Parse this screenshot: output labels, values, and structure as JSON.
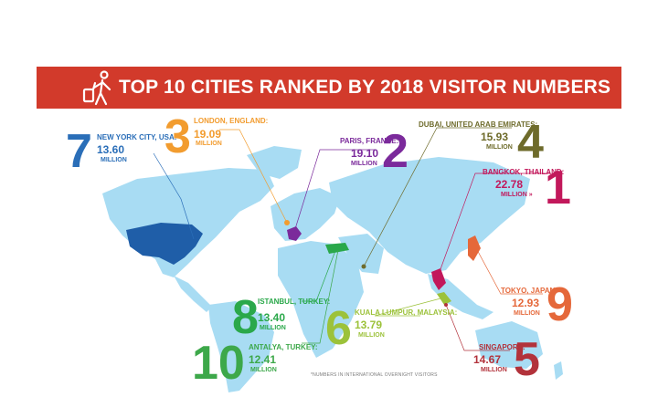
{
  "title": "TOP 10 CITIES RANKED BY 2018 VISITOR NUMBERS",
  "footnote": "*NUMBERS IN INTERNATIONAL OVERNIGHT VISITORS",
  "icon": "traveler-with-suitcase-icon",
  "colors": {
    "banner": "#d23a2b",
    "map": "#a8dcf3",
    "usa": "#1f5ea8"
  },
  "chart_data": {
    "type": "table",
    "title": "TOP 10 CITIES RANKED BY 2018 VISITOR NUMBERS",
    "unit": "MILLION",
    "entries": [
      {
        "rank": "1",
        "city": "BANGKOK, THAILAND:",
        "value": "22.78",
        "unit": "MILLION »",
        "color": "#c2185b"
      },
      {
        "rank": "2",
        "city": "PARIS, FRANCE:",
        "value": "19.10",
        "unit": "MILLION",
        "color": "#7b2a9b"
      },
      {
        "rank": "3",
        "city": "LONDON, ENGLAND:",
        "value": "19.09",
        "unit": "MILLION",
        "color": "#f29c2f"
      },
      {
        "rank": "4",
        "city": "DUBAI, UNITED ARAB EMIRATES:",
        "value": "15.93",
        "unit": "MILLION",
        "color": "#6e6b2b"
      },
      {
        "rank": "5",
        "city": "SINGAPORE:",
        "value": "14.67",
        "unit": "MILLION",
        "color": "#b2323b"
      },
      {
        "rank": "6",
        "city": "KUALA LUMPUR, MALAYSIA:",
        "value": "13.79",
        "unit": "MILLION",
        "color": "#9cc23a"
      },
      {
        "rank": "7",
        "city": "NEW YORK CITY, USA:",
        "value": "13.60",
        "unit": "MILLION",
        "color": "#2a6eb8"
      },
      {
        "rank": "8",
        "city": "ISTANBUL, TURKEY:",
        "value": "13.40",
        "unit": "MILLION",
        "color": "#2aa84a"
      },
      {
        "rank": "9",
        "city": "TOKYO, JAPAN:",
        "value": "12.93",
        "unit": "MILLION",
        "color": "#e5683a"
      },
      {
        "rank": "10",
        "city": "ANTALYA, TURKEY:",
        "value": "12.41",
        "unit": "MILLION",
        "color": "#3da84a"
      }
    ]
  }
}
